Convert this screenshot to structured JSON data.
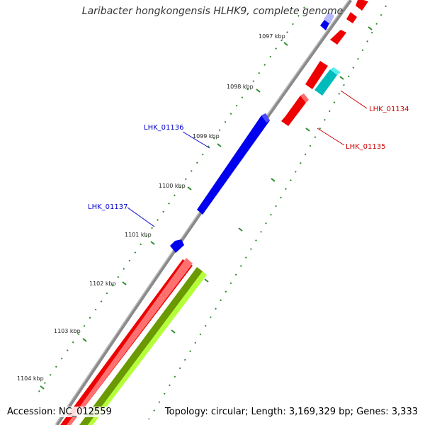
{
  "title": "Laribacter hongkongensis HLHK9, complete genome",
  "footer": {
    "accession": "Accession: NC_012559",
    "summary": "Topology: circular; Length: 3,169,329 bp; Genes: 3,333"
  },
  "ticks": [
    "1097 kbp",
    "1098 kbp",
    "1099 kbp",
    "1100 kbp",
    "1101 kbp",
    "1102 kbp",
    "1103 kbp",
    "1104 kbp"
  ],
  "gene_labels": [
    {
      "name": "LHK_01134",
      "color": "#cc0000"
    },
    {
      "name": "LHK_01135",
      "color": "#cc0000"
    },
    {
      "name": "LHK_01136",
      "color": "#0000cc"
    },
    {
      "name": "LHK_01137",
      "color": "#0000cc"
    }
  ],
  "colors": {
    "backbone": "#8a8a8a",
    "forward_cds": "#ff0000",
    "reverse_cds": "#0000ff",
    "rna": "#00cccc",
    "olive": "#669900",
    "lime": "#b3ff33",
    "tick_dots": "#228b22"
  }
}
